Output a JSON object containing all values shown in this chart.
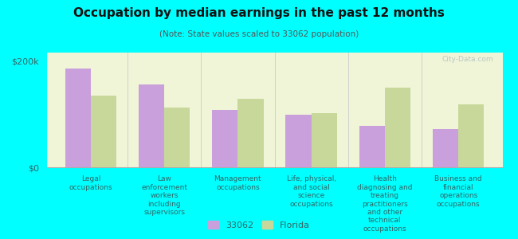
{
  "title": "Occupation by median earnings in the past 12 months",
  "subtitle": "(Note: State values scaled to 33062 population)",
  "categories": [
    "Legal\noccupations",
    "Law\nenforcement\nworkers\nincluding\nsupervisors",
    "Management\noccupations",
    "Life, physical,\nand social\nscience\noccupations",
    "Health\ndiagnosing and\ntreating\npractitioners\nand other\ntechnical\noccupations",
    "Business and\nfinancial\noperations\noccupations"
  ],
  "values_33062": [
    185000,
    155000,
    108000,
    98000,
    78000,
    72000
  ],
  "values_florida": [
    135000,
    112000,
    128000,
    102000,
    150000,
    118000
  ],
  "color_33062": "#c9a0dc",
  "color_florida": "#c8d89a",
  "background_color": "#00ffff",
  "plot_bg_color": "#f0f5d8",
  "ylim": [
    0,
    215000
  ],
  "yticks": [
    0,
    200000
  ],
  "ytick_labels": [
    "$0",
    "$200k"
  ],
  "legend_label_1": "33062",
  "legend_label_2": "Florida",
  "watermark": "City-Data.com",
  "title_fontsize": 11,
  "subtitle_fontsize": 7.5,
  "tick_label_fontsize": 6.5,
  "ytick_fontsize": 8,
  "legend_fontsize": 8,
  "bar_width": 0.35,
  "tick_color": "#336666",
  "watermark_color": "#b0c0c0"
}
